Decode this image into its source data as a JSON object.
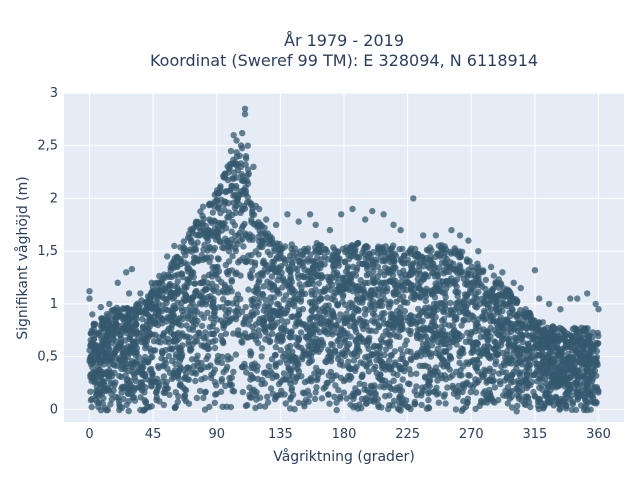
{
  "chart_data": {
    "type": "scatter",
    "title": {
      "line1": "År 1979 - 2019",
      "line2": "Koordinat (Sweref 99 TM): E 328094, N 6118914"
    },
    "xlabel": "Vågriktning (grader)",
    "ylabel": "Signifikant våghöjd (m)",
    "xlim": [
      -18,
      378
    ],
    "ylim": [
      -0.12,
      3
    ],
    "x_ticks": [
      {
        "value": 0,
        "label": "0"
      },
      {
        "value": 45,
        "label": "45"
      },
      {
        "value": 90,
        "label": "90"
      },
      {
        "value": 135,
        "label": "135"
      },
      {
        "value": 180,
        "label": "180"
      },
      {
        "value": 225,
        "label": "225"
      },
      {
        "value": 270,
        "label": "270"
      },
      {
        "value": 315,
        "label": "315"
      },
      {
        "value": 360,
        "label": "360"
      }
    ],
    "y_ticks": [
      {
        "value": 0,
        "label": "0"
      },
      {
        "value": 0.5,
        "label": "0,5"
      },
      {
        "value": 1,
        "label": "1"
      },
      {
        "value": 1.5,
        "label": "1,5"
      },
      {
        "value": 2,
        "label": "2"
      },
      {
        "value": 2.5,
        "label": "2,5"
      },
      {
        "value": 3,
        "label": "3"
      }
    ],
    "grid": true,
    "legend": "none",
    "colors": {
      "plot_background": "#e5ecf6",
      "grid": "#ffffff",
      "marker": "#34586e",
      "text": "#2a3f5f"
    },
    "series": [
      {
        "marker_opacity": 0.75,
        "envelope": [
          {
            "x": 0,
            "y": 0.85
          },
          {
            "x": 10,
            "y": 0.9
          },
          {
            "x": 20,
            "y": 1.0
          },
          {
            "x": 30,
            "y": 1.0
          },
          {
            "x": 40,
            "y": 1.1
          },
          {
            "x": 50,
            "y": 1.3
          },
          {
            "x": 60,
            "y": 1.45
          },
          {
            "x": 70,
            "y": 1.7
          },
          {
            "x": 80,
            "y": 1.95
          },
          {
            "x": 90,
            "y": 2.1
          },
          {
            "x": 100,
            "y": 2.4
          },
          {
            "x": 105,
            "y": 2.5
          },
          {
            "x": 110,
            "y": 2.55
          },
          {
            "x": 115,
            "y": 2.2
          },
          {
            "x": 120,
            "y": 1.8
          },
          {
            "x": 130,
            "y": 1.65
          },
          {
            "x": 140,
            "y": 1.6
          },
          {
            "x": 150,
            "y": 1.55
          },
          {
            "x": 160,
            "y": 1.6
          },
          {
            "x": 170,
            "y": 1.6
          },
          {
            "x": 180,
            "y": 1.55
          },
          {
            "x": 190,
            "y": 1.6
          },
          {
            "x": 200,
            "y": 1.55
          },
          {
            "x": 210,
            "y": 1.6
          },
          {
            "x": 220,
            "y": 1.55
          },
          {
            "x": 230,
            "y": 1.55
          },
          {
            "x": 240,
            "y": 1.55
          },
          {
            "x": 250,
            "y": 1.6
          },
          {
            "x": 260,
            "y": 1.55
          },
          {
            "x": 270,
            "y": 1.45
          },
          {
            "x": 280,
            "y": 1.35
          },
          {
            "x": 290,
            "y": 1.25
          },
          {
            "x": 300,
            "y": 1.1
          },
          {
            "x": 310,
            "y": 0.95
          },
          {
            "x": 320,
            "y": 0.85
          },
          {
            "x": 330,
            "y": 0.8
          },
          {
            "x": 340,
            "y": 0.8
          },
          {
            "x": 350,
            "y": 0.8
          },
          {
            "x": 360,
            "y": 0.75
          }
        ],
        "sample_points": [
          {
            "x": 0,
            "y": 1.12
          },
          {
            "x": 0,
            "y": 1.05
          },
          {
            "x": 2,
            "y": 0.9
          },
          {
            "x": 8,
            "y": 0.97
          },
          {
            "x": 14,
            "y": 1.0
          },
          {
            "x": 20,
            "y": 1.2
          },
          {
            "x": 26,
            "y": 1.3
          },
          {
            "x": 30,
            "y": 1.33
          },
          {
            "x": 28,
            "y": 1.1
          },
          {
            "x": 36,
            "y": 1.1
          },
          {
            "x": 44,
            "y": 1.2
          },
          {
            "x": 55,
            "y": 1.45
          },
          {
            "x": 60,
            "y": 1.55
          },
          {
            "x": 72,
            "y": 1.6
          },
          {
            "x": 78,
            "y": 1.65
          },
          {
            "x": 85,
            "y": 1.95
          },
          {
            "x": 90,
            "y": 2.05
          },
          {
            "x": 95,
            "y": 2.2
          },
          {
            "x": 100,
            "y": 2.45
          },
          {
            "x": 102,
            "y": 2.6
          },
          {
            "x": 104,
            "y": 2.55
          },
          {
            "x": 108,
            "y": 2.62
          },
          {
            "x": 110,
            "y": 2.85
          },
          {
            "x": 110,
            "y": 2.8
          },
          {
            "x": 112,
            "y": 2.5
          },
          {
            "x": 116,
            "y": 2.3
          },
          {
            "x": 120,
            "y": 1.9
          },
          {
            "x": 125,
            "y": 1.8
          },
          {
            "x": 132,
            "y": 1.75
          },
          {
            "x": 140,
            "y": 1.85
          },
          {
            "x": 148,
            "y": 1.78
          },
          {
            "x": 156,
            "y": 1.85
          },
          {
            "x": 160,
            "y": 1.75
          },
          {
            "x": 170,
            "y": 1.7
          },
          {
            "x": 178,
            "y": 1.85
          },
          {
            "x": 186,
            "y": 1.9
          },
          {
            "x": 195,
            "y": 1.8
          },
          {
            "x": 200,
            "y": 1.88
          },
          {
            "x": 208,
            "y": 1.85
          },
          {
            "x": 215,
            "y": 1.75
          },
          {
            "x": 220,
            "y": 1.7
          },
          {
            "x": 229,
            "y": 2.0
          },
          {
            "x": 236,
            "y": 1.65
          },
          {
            "x": 245,
            "y": 1.65
          },
          {
            "x": 256,
            "y": 1.7
          },
          {
            "x": 262,
            "y": 1.65
          },
          {
            "x": 268,
            "y": 1.6
          },
          {
            "x": 275,
            "y": 1.5
          },
          {
            "x": 284,
            "y": 1.35
          },
          {
            "x": 292,
            "y": 1.3
          },
          {
            "x": 300,
            "y": 1.2
          },
          {
            "x": 305,
            "y": 1.15
          },
          {
            "x": 315,
            "y": 1.32
          },
          {
            "x": 318,
            "y": 1.05
          },
          {
            "x": 325,
            "y": 1.0
          },
          {
            "x": 333,
            "y": 0.95
          },
          {
            "x": 340,
            "y": 1.05
          },
          {
            "x": 345,
            "y": 1.05
          },
          {
            "x": 352,
            "y": 1.1
          },
          {
            "x": 358,
            "y": 1.0
          },
          {
            "x": 360,
            "y": 0.95
          }
        ]
      }
    ]
  }
}
